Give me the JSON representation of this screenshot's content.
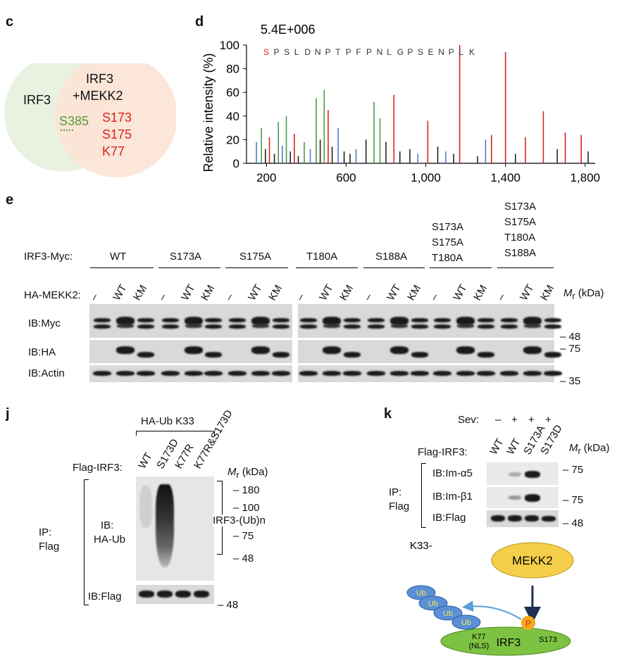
{
  "panels": {
    "c": "c",
    "d": "d",
    "e": "e",
    "j": "j",
    "k": "k"
  },
  "venn": {
    "left_label": "IRF3",
    "right_label_1": "IRF3",
    "right_label_2": "+MEKK2",
    "overlap": "S385",
    "right_only": [
      "S173",
      "S175",
      "K77"
    ],
    "colors": {
      "left": "#e9f1e1",
      "right": "#fbe4d6",
      "green": "#5a9a3a",
      "red": "#d9231d"
    }
  },
  "spectrum": {
    "scale_text": "5.4E+006",
    "ylabel": "Relative intensity (%)",
    "peptide": [
      "S",
      "P",
      "S",
      "L",
      "D",
      "N",
      "P",
      "T",
      "P",
      "F",
      "P",
      "N",
      "L",
      "G",
      "P",
      "S",
      "E",
      "N",
      "P",
      "L",
      "K"
    ]
  },
  "chart_data": {
    "type": "bar",
    "title": "5.4E+006",
    "xlabel": "",
    "ylabel": "Relative intensity (%)",
    "xlim": [
      100,
      1850
    ],
    "ylim": [
      0,
      100
    ],
    "xticks": [
      "200",
      "600",
      "1,000",
      "1,400",
      "1,800"
    ],
    "yticks": [
      "0",
      "20",
      "40",
      "60",
      "80",
      "100"
    ],
    "peaks": [
      {
        "x": 150,
        "y": 18,
        "c": "#5b76c9"
      },
      {
        "x": 175,
        "y": 30,
        "c": "#4a9a4a"
      },
      {
        "x": 195,
        "y": 12,
        "c": "#222"
      },
      {
        "x": 215,
        "y": 22,
        "c": "#d9231d"
      },
      {
        "x": 240,
        "y": 8,
        "c": "#222"
      },
      {
        "x": 260,
        "y": 35,
        "c": "#4a9a4a"
      },
      {
        "x": 280,
        "y": 15,
        "c": "#5b76c9"
      },
      {
        "x": 300,
        "y": 40,
        "c": "#4a9a4a"
      },
      {
        "x": 320,
        "y": 10,
        "c": "#222"
      },
      {
        "x": 340,
        "y": 25,
        "c": "#d9231d"
      },
      {
        "x": 360,
        "y": 6,
        "c": "#222"
      },
      {
        "x": 390,
        "y": 18,
        "c": "#4a9a4a"
      },
      {
        "x": 420,
        "y": 12,
        "c": "#5b76c9"
      },
      {
        "x": 450,
        "y": 55,
        "c": "#4a9a4a"
      },
      {
        "x": 470,
        "y": 20,
        "c": "#222"
      },
      {
        "x": 490,
        "y": 62,
        "c": "#4a9a4a"
      },
      {
        "x": 510,
        "y": 45,
        "c": "#d9231d"
      },
      {
        "x": 530,
        "y": 14,
        "c": "#222"
      },
      {
        "x": 560,
        "y": 30,
        "c": "#5b76c9"
      },
      {
        "x": 590,
        "y": 10,
        "c": "#222"
      },
      {
        "x": 620,
        "y": 8,
        "c": "#222"
      },
      {
        "x": 650,
        "y": 12,
        "c": "#5b76c9"
      },
      {
        "x": 700,
        "y": 20,
        "c": "#222"
      },
      {
        "x": 740,
        "y": 52,
        "c": "#4a9a4a"
      },
      {
        "x": 770,
        "y": 38,
        "c": "#4a9a4a"
      },
      {
        "x": 800,
        "y": 18,
        "c": "#222"
      },
      {
        "x": 840,
        "y": 58,
        "c": "#d9231d"
      },
      {
        "x": 870,
        "y": 10,
        "c": "#222"
      },
      {
        "x": 920,
        "y": 12,
        "c": "#222"
      },
      {
        "x": 960,
        "y": 8,
        "c": "#5b76c9"
      },
      {
        "x": 1010,
        "y": 36,
        "c": "#d9231d"
      },
      {
        "x": 1060,
        "y": 14,
        "c": "#222"
      },
      {
        "x": 1100,
        "y": 10,
        "c": "#5b76c9"
      },
      {
        "x": 1140,
        "y": 8,
        "c": "#222"
      },
      {
        "x": 1170,
        "y": 100,
        "c": "#d9231d"
      },
      {
        "x": 1260,
        "y": 6,
        "c": "#222"
      },
      {
        "x": 1300,
        "y": 20,
        "c": "#5b76c9"
      },
      {
        "x": 1330,
        "y": 24,
        "c": "#d9231d"
      },
      {
        "x": 1400,
        "y": 94,
        "c": "#d9231d"
      },
      {
        "x": 1450,
        "y": 8,
        "c": "#222"
      },
      {
        "x": 1500,
        "y": 22,
        "c": "#d9231d"
      },
      {
        "x": 1590,
        "y": 44,
        "c": "#d9231d"
      },
      {
        "x": 1660,
        "y": 12,
        "c": "#222"
      },
      {
        "x": 1700,
        "y": 26,
        "c": "#d9231d"
      },
      {
        "x": 1780,
        "y": 24,
        "c": "#d9231d"
      },
      {
        "x": 1815,
        "y": 10,
        "c": "#222"
      }
    ]
  },
  "panel_e": {
    "row_label": "IRF3-Myc:",
    "groups": [
      "WT",
      "S173A",
      "S175A",
      "T180A",
      "S188A"
    ],
    "group_triple": [
      "S173A",
      "S175A",
      "T180A"
    ],
    "group_quad": [
      "S173A",
      "S175A",
      "T180A",
      "S188A"
    ],
    "mekk2_label": "HA-MEKK2:",
    "lane_labels": [
      "–",
      "WT",
      "KM"
    ],
    "mr_label": "M",
    "mr_sub": "r",
    "mr_unit": " (kDa)",
    "ib": [
      "IB:Myc",
      "IB:HA",
      "IB:Actin"
    ],
    "markers": [
      "– 48",
      "– 75",
      "– 35"
    ]
  },
  "panel_j": {
    "header": "HA-Ub K33",
    "row_label": "Flag-IRF3:",
    "lanes": [
      "WT",
      "S173D",
      "K77R",
      "K77R&S173D"
    ],
    "ip": [
      "IP:",
      "Flag"
    ],
    "ib_ub": [
      "IB:",
      "HA-Ub"
    ],
    "ib_flag": "IB:Flag",
    "mr": "M",
    "mr_sub": "r",
    "mr_unit": " (kDa)",
    "markers": [
      "– 180",
      "– 100",
      "– 75",
      "– 48"
    ],
    "flag_marker": "– 48",
    "bracket_label": "IRF3-(Ub)n"
  },
  "panel_k": {
    "sev_label": "Sev:",
    "sev": [
      "–",
      "+",
      "+",
      "+"
    ],
    "row_label": "Flag-IRF3:",
    "lanes": [
      "WT",
      "WT",
      "S173A",
      "S173D"
    ],
    "mr": "M",
    "mr_sub": "r",
    "mr_unit": " (kDa)",
    "ip": [
      "IP:",
      "Flag"
    ],
    "ib": [
      "IB:Im-α5",
      "IB:Im-β1",
      "IB:Flag"
    ],
    "markers": [
      "– 75",
      "– 75",
      "– 48"
    ],
    "schematic": {
      "mekk2": "MEKK2",
      "k33": "K33-",
      "ub": [
        "Ub",
        "Ub",
        "Ub",
        "Ub"
      ],
      "p": "P",
      "irf3": "IRF3",
      "k77": "K77",
      "nls": "(NLS)",
      "s173": "S173",
      "colors": {
        "mekk2": "#f5cf4a",
        "irf3": "#7dc242",
        "ub": "#5b8fd6",
        "p": "#f6a81c"
      }
    }
  }
}
